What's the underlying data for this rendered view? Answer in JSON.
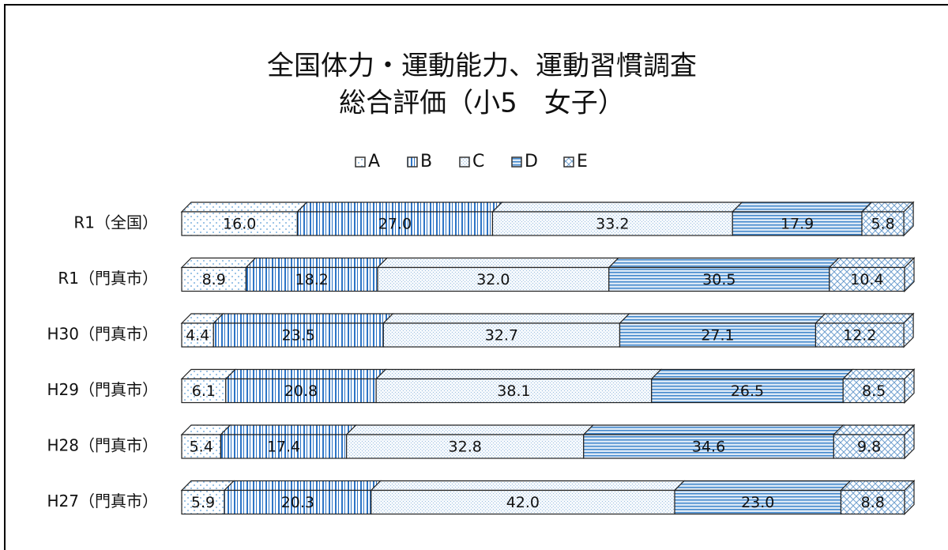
{
  "chart_data": {
    "type": "stacked-bar-3d",
    "title": "全国体力・運動能力、運動習慣調査",
    "subtitle": "総合評価（小5　女子）",
    "categories": [
      "R1（全国）",
      "R1（門真市）",
      "H30（門真市）",
      "H29（門真市）",
      "H28（門真市）",
      "H27（門真市）"
    ],
    "xlim": [
      0,
      100
    ],
    "legend": "top",
    "series": [
      {
        "name": "A",
        "color": "#7fb2e0",
        "values": [
          16,
          8.9,
          4.4,
          6.1,
          5.4,
          5.9
        ],
        "value_labels": [
          "16.0",
          "8.9",
          "4.4",
          "6.1",
          "5.4",
          "5.9"
        ]
      },
      {
        "name": "B",
        "color": "#2e75c6",
        "values": [
          27,
          18.2,
          23.5,
          20.8,
          17.4,
          20.3
        ],
        "value_labels": [
          "27.0",
          "18.2",
          "23.5",
          "20.8",
          "17.4",
          "20.3"
        ]
      },
      {
        "name": "C",
        "color": "#9dbfe0",
        "values": [
          33.2,
          32,
          32.7,
          38.1,
          32.8,
          42
        ],
        "value_labels": [
          "33.2",
          "32.0",
          "32.7",
          "38.1",
          "32.8",
          "42.0"
        ]
      },
      {
        "name": "D",
        "color": "#3f86cc",
        "values": [
          17.9,
          30.5,
          27.1,
          26.5,
          34.6,
          23
        ],
        "value_labels": [
          "17.9",
          "30.5",
          "27.1",
          "26.5",
          "34.6",
          "23.0"
        ]
      },
      {
        "name": "E",
        "color": "#6f9fcf",
        "values": [
          5.8,
          10.4,
          12.2,
          8.5,
          9.8,
          8.8
        ],
        "value_labels": [
          "5.8",
          "10.4",
          "12.2",
          "8.5",
          "9.8",
          "8.8"
        ]
      }
    ]
  }
}
